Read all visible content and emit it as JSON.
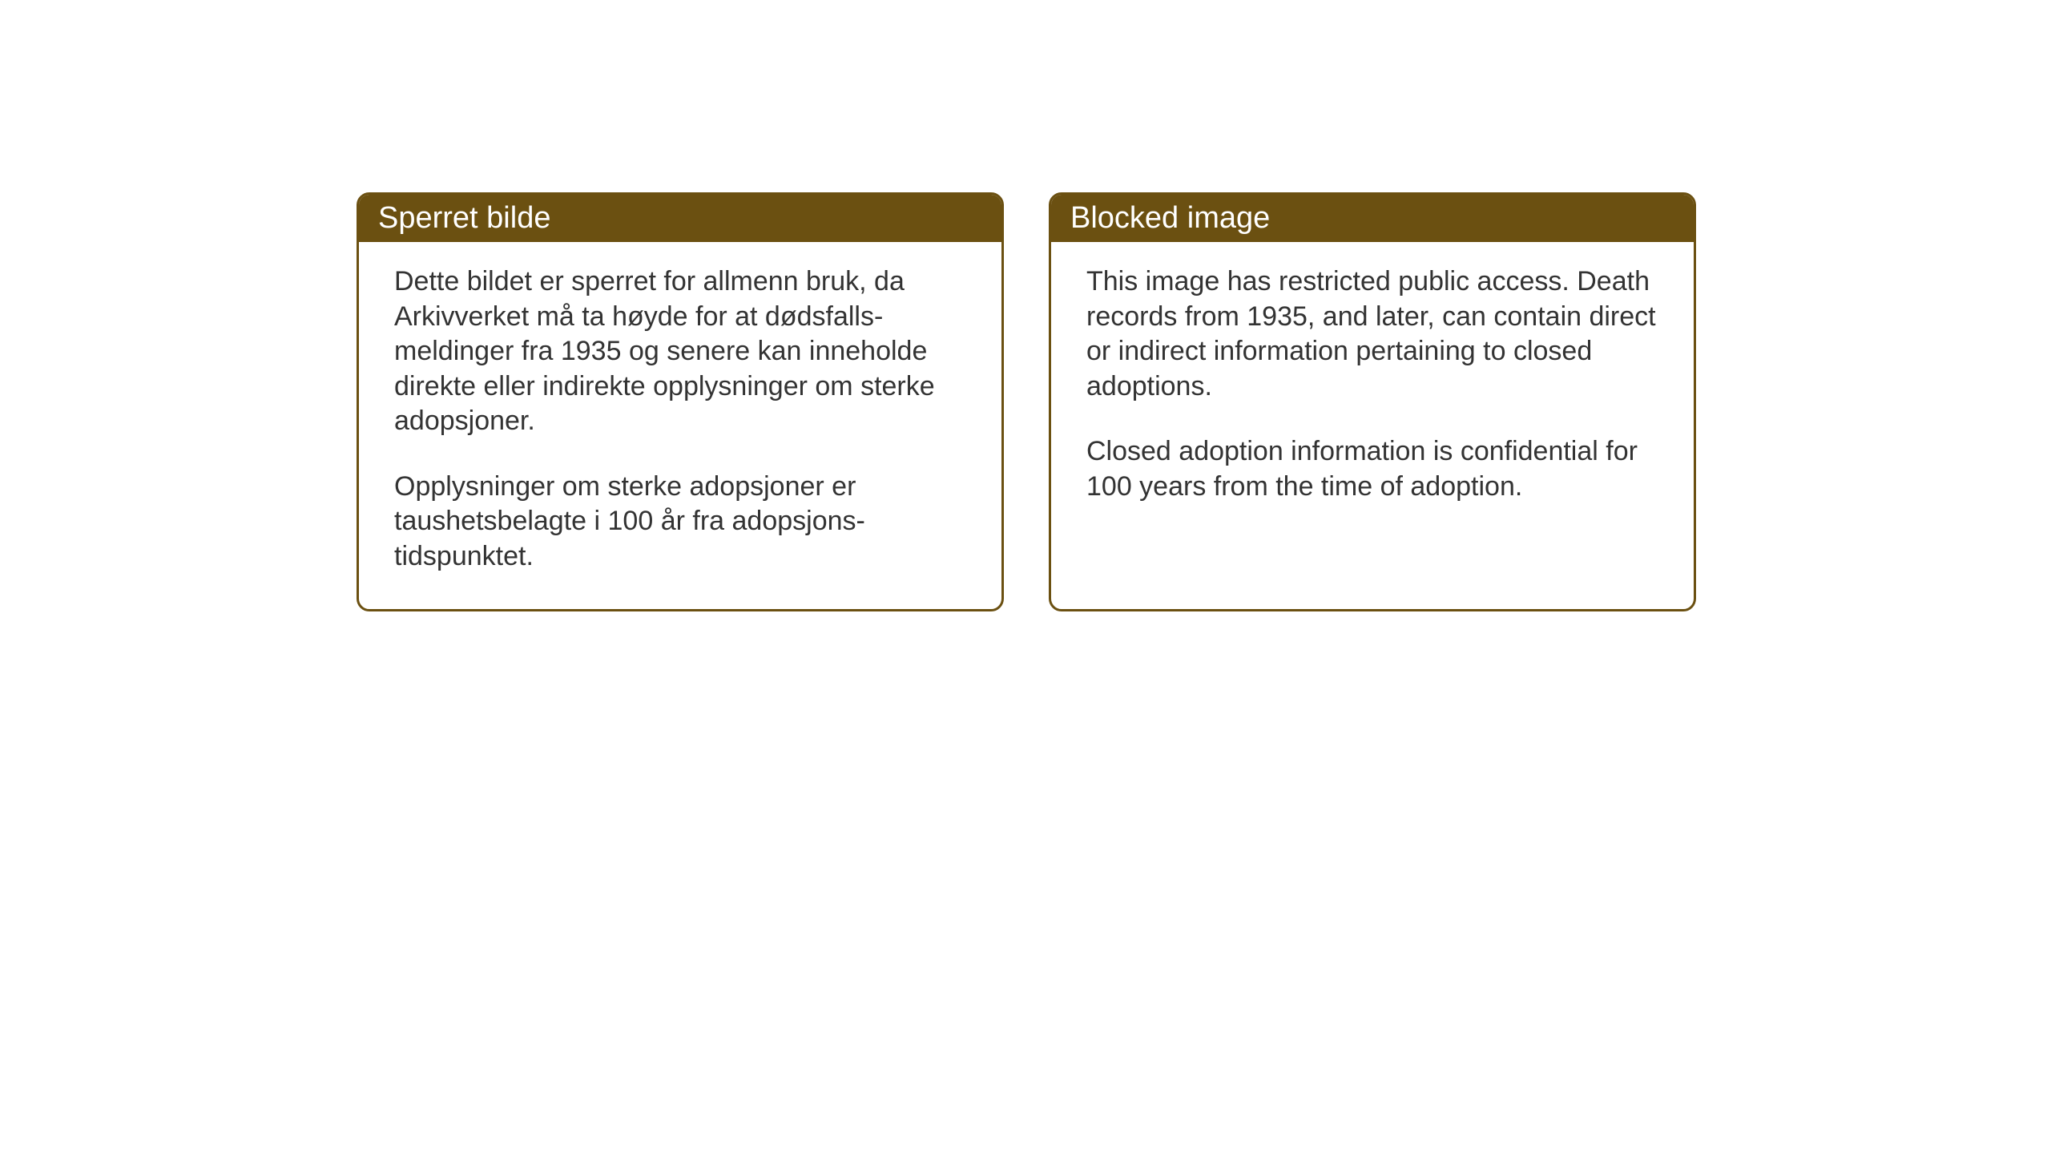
{
  "boxes": {
    "norwegian": {
      "title": "Sperret bilde",
      "paragraph1": "Dette bildet er sperret for allmenn bruk, da Arkivverket må ta høyde for at dødsfalls-meldinger fra 1935 og senere kan inneholde direkte eller indirekte opplysninger om sterke adopsjoner.",
      "paragraph2": "Opplysninger om sterke adopsjoner er taushetsbelagte i 100 år fra adopsjons-tidspunktet."
    },
    "english": {
      "title": "Blocked image",
      "paragraph1": "This image has restricted public access. Death records from 1935, and later, can contain direct or indirect information pertaining to closed adoptions.",
      "paragraph2": "Closed adoption information is confidential for 100 years from the time of adoption."
    }
  },
  "styling": {
    "header_background_color": "#6b5011",
    "header_text_color": "#ffffff",
    "border_color": "#6b5011",
    "body_background_color": "#ffffff",
    "body_text_color": "#333333",
    "page_background_color": "#ffffff",
    "header_fontsize": 38,
    "body_fontsize": 34,
    "border_width": 3,
    "border_radius": 16
  }
}
